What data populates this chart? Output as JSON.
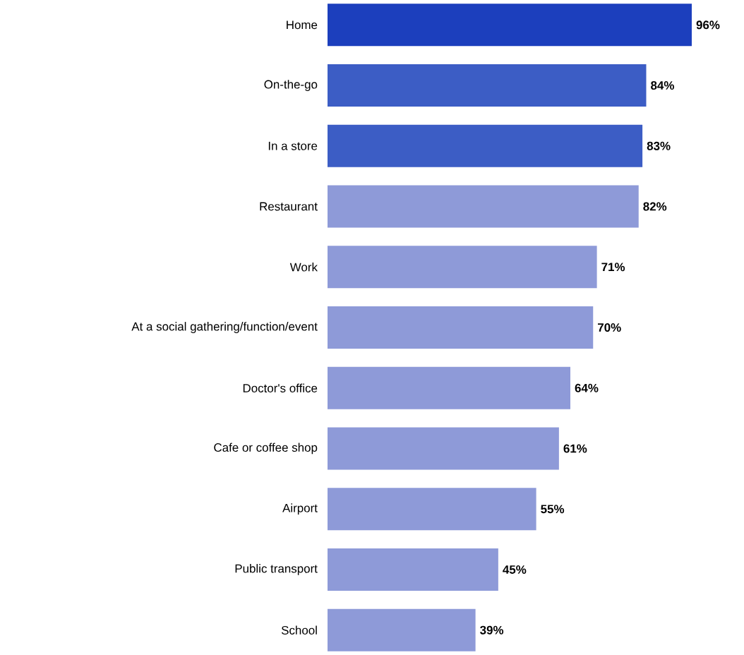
{
  "chart_data": {
    "type": "bar",
    "orientation": "horizontal",
    "categories": [
      "Home",
      "On-the-go",
      "In a store",
      "Restaurant",
      "Work",
      "At a social gathering/function/event",
      "Doctor's office",
      "Cafe or coffee shop",
      "Airport",
      "Public transport",
      "School"
    ],
    "values": [
      96,
      84,
      83,
      82,
      71,
      70,
      64,
      61,
      55,
      45,
      39
    ],
    "value_labels": [
      "96%",
      "84%",
      "83%",
      "82%",
      "71%",
      "70%",
      "64%",
      "61%",
      "55%",
      "45%",
      "39%"
    ],
    "colors": [
      "#1c3fbd",
      "#3c5dc5",
      "#3c5dc5",
      "#8e9ad8",
      "#8e9ad8",
      "#8e9ad8",
      "#8e9ad8",
      "#8e9ad8",
      "#8e9ad8",
      "#8e9ad8",
      "#8e9ad8"
    ]
  }
}
